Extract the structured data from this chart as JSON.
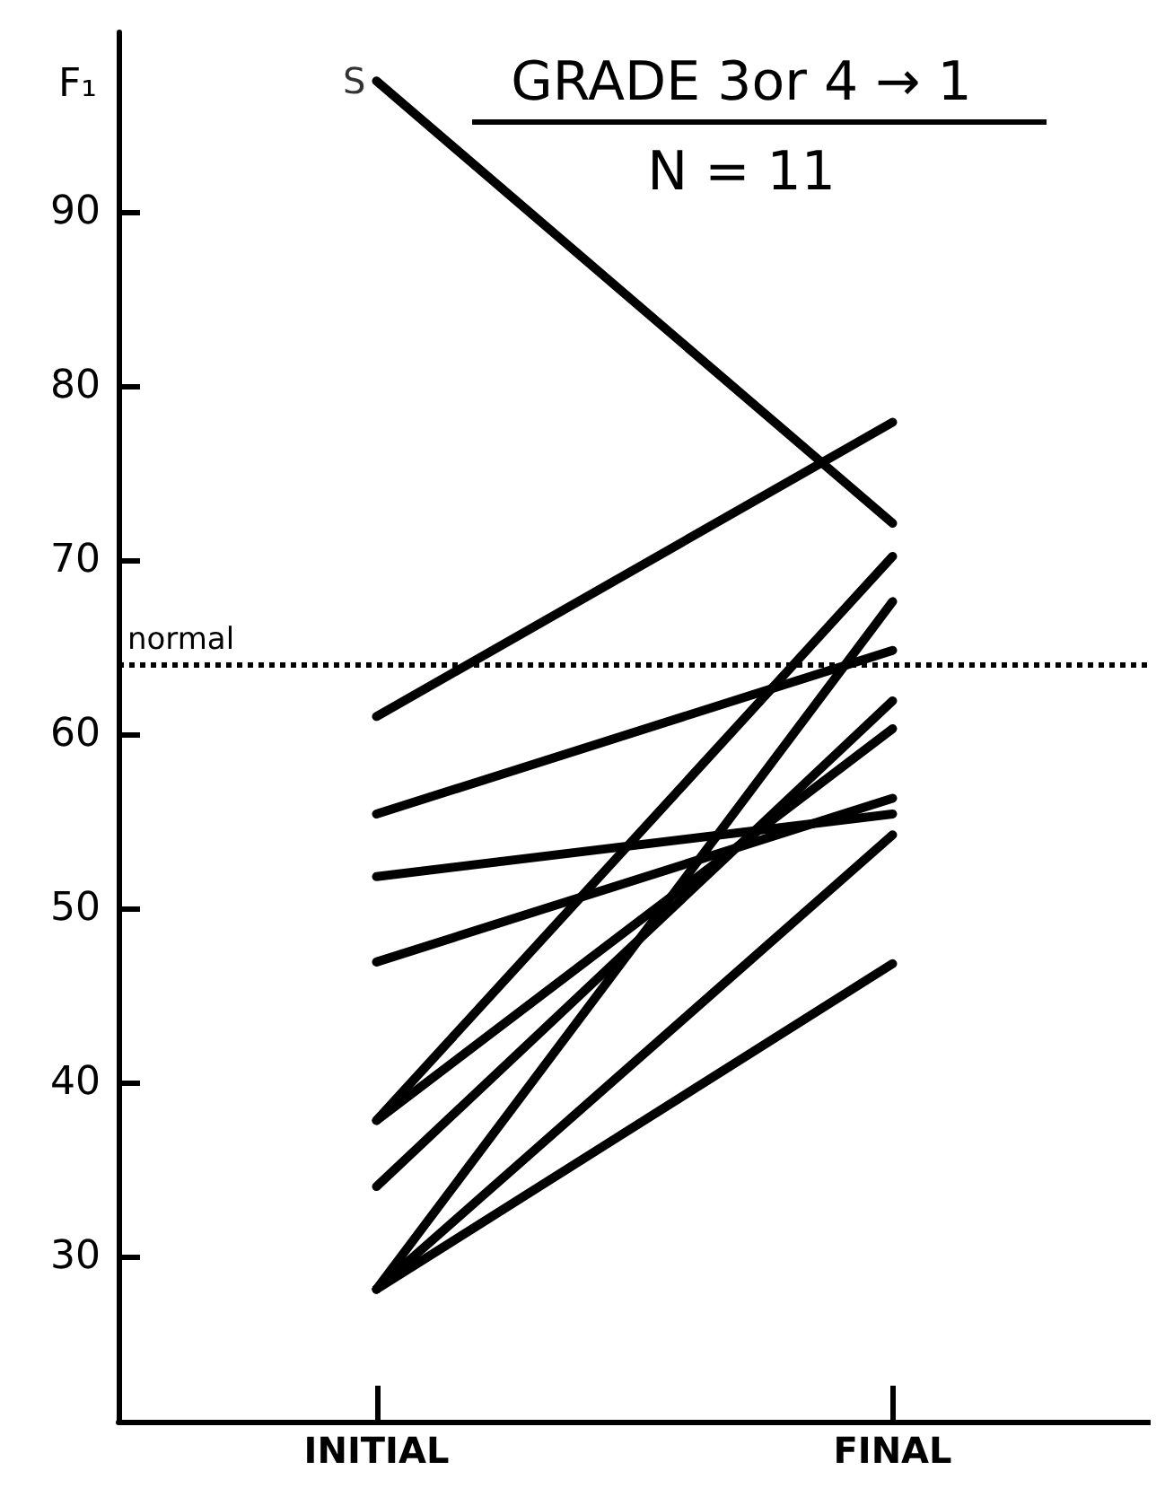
{
  "chart_data": {
    "type": "line",
    "title": "GRADE 3or 4 → 1",
    "subtitle": "N = 11",
    "ylabel": "F₁",
    "categories": [
      "INITIAL",
      "FINAL"
    ],
    "series": [
      {
        "color": "#000000",
        "values": [
          97.5,
          72.1
        ]
      },
      {
        "color": "#000000",
        "values": [
          61,
          77.9
        ]
      },
      {
        "color": "#000000",
        "values": [
          55.4,
          64.8
        ]
      },
      {
        "color": "#000000",
        "values": [
          51.8,
          55.4
        ]
      },
      {
        "color": "#000000",
        "values": [
          46.9,
          56.3
        ]
      },
      {
        "color": "#000000",
        "values": [
          37.8,
          70.2
        ]
      },
      {
        "color": "#000000",
        "values": [
          37.8,
          60.3
        ]
      },
      {
        "color": "#000000",
        "values": [
          34,
          61.9
        ]
      },
      {
        "color": "#000000",
        "values": [
          28.1,
          67.6
        ]
      },
      {
        "color": "#000000",
        "values": [
          28.1,
          54.2
        ]
      },
      {
        "color": "#000000",
        "values": [
          28.1,
          46.8
        ]
      }
    ],
    "annotations": [
      {
        "text": "S",
        "x": "INITIAL",
        "y": 97.5
      }
    ],
    "ref_lines": [
      {
        "axis": "y",
        "value": 64,
        "label": "normal",
        "color": "#000000",
        "line_style": "dotted"
      }
    ],
    "ylim": [
      20.5,
      100.3
    ],
    "yticks": [
      30,
      40,
      50,
      60,
      70,
      80,
      90
    ],
    "grid": false,
    "marker": "none",
    "line_style": "solid"
  }
}
